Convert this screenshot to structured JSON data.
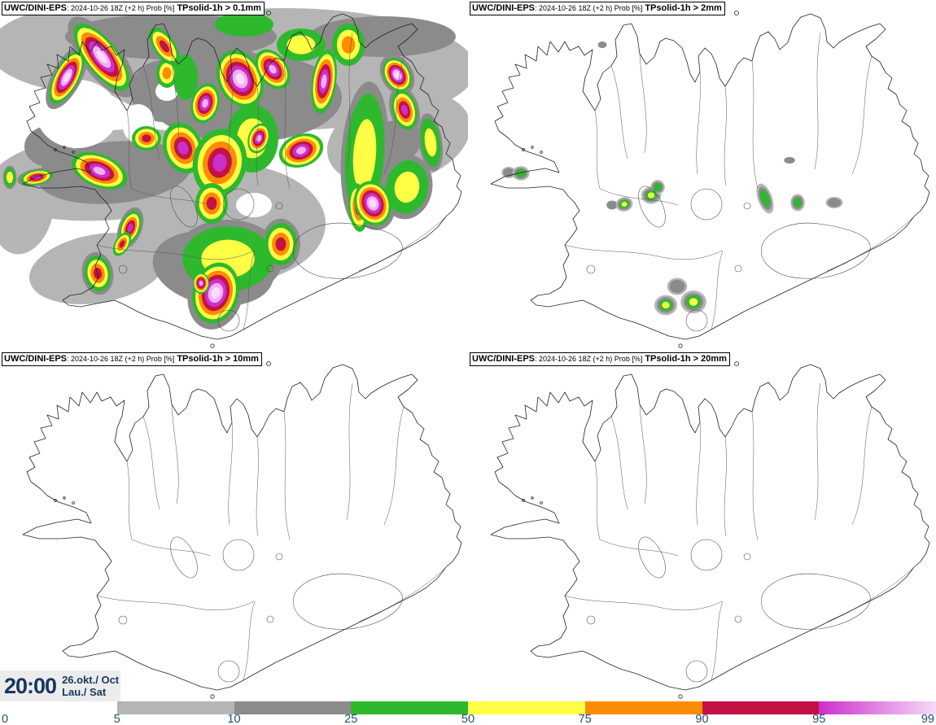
{
  "panels": [
    {
      "model": "UWC/DINI-EPS",
      "meta": ": 2024-10-26 18Z (+2 h) Prob [%]",
      "threshold": "TPsolid-1h > 0.1mm"
    },
    {
      "model": "UWC/DINI-EPS",
      "meta": ": 2024-10-26 18Z (+2 h) Prob [%]",
      "threshold": "TPsolid-1h > 2mm"
    },
    {
      "model": "UWC/DINI-EPS",
      "meta": ": 2024-10-26 18Z (+2 h) Prob [%]",
      "threshold": "TPsolid-1h > 10mm"
    },
    {
      "model": "UWC/DINI-EPS",
      "meta": ": 2024-10-26 18Z (+2 h) Prob [%]",
      "threshold": "TPsolid-1h > 20mm"
    }
  ],
  "footer": {
    "time": "20:00",
    "date_line1": "26.okt./ Oct",
    "date_line2": "Lau./ Sat"
  },
  "colorbar": {
    "ticks": [
      "0",
      "5",
      "10",
      "25",
      "50",
      "75",
      "90",
      "95",
      "99"
    ],
    "segments": [
      {
        "color": "#ffffff"
      },
      {
        "color": "#b5b5b5"
      },
      {
        "color": "#8b8b8b"
      },
      {
        "color": "#2eb82e"
      },
      {
        "color": "#ffff45"
      },
      {
        "color": "#ff8c00"
      },
      {
        "color": "#c41244"
      },
      {
        "color": "#cc2fcc",
        "gradient_to": "#f7d9f7"
      }
    ],
    "text_color": "#1f4e79"
  }
}
